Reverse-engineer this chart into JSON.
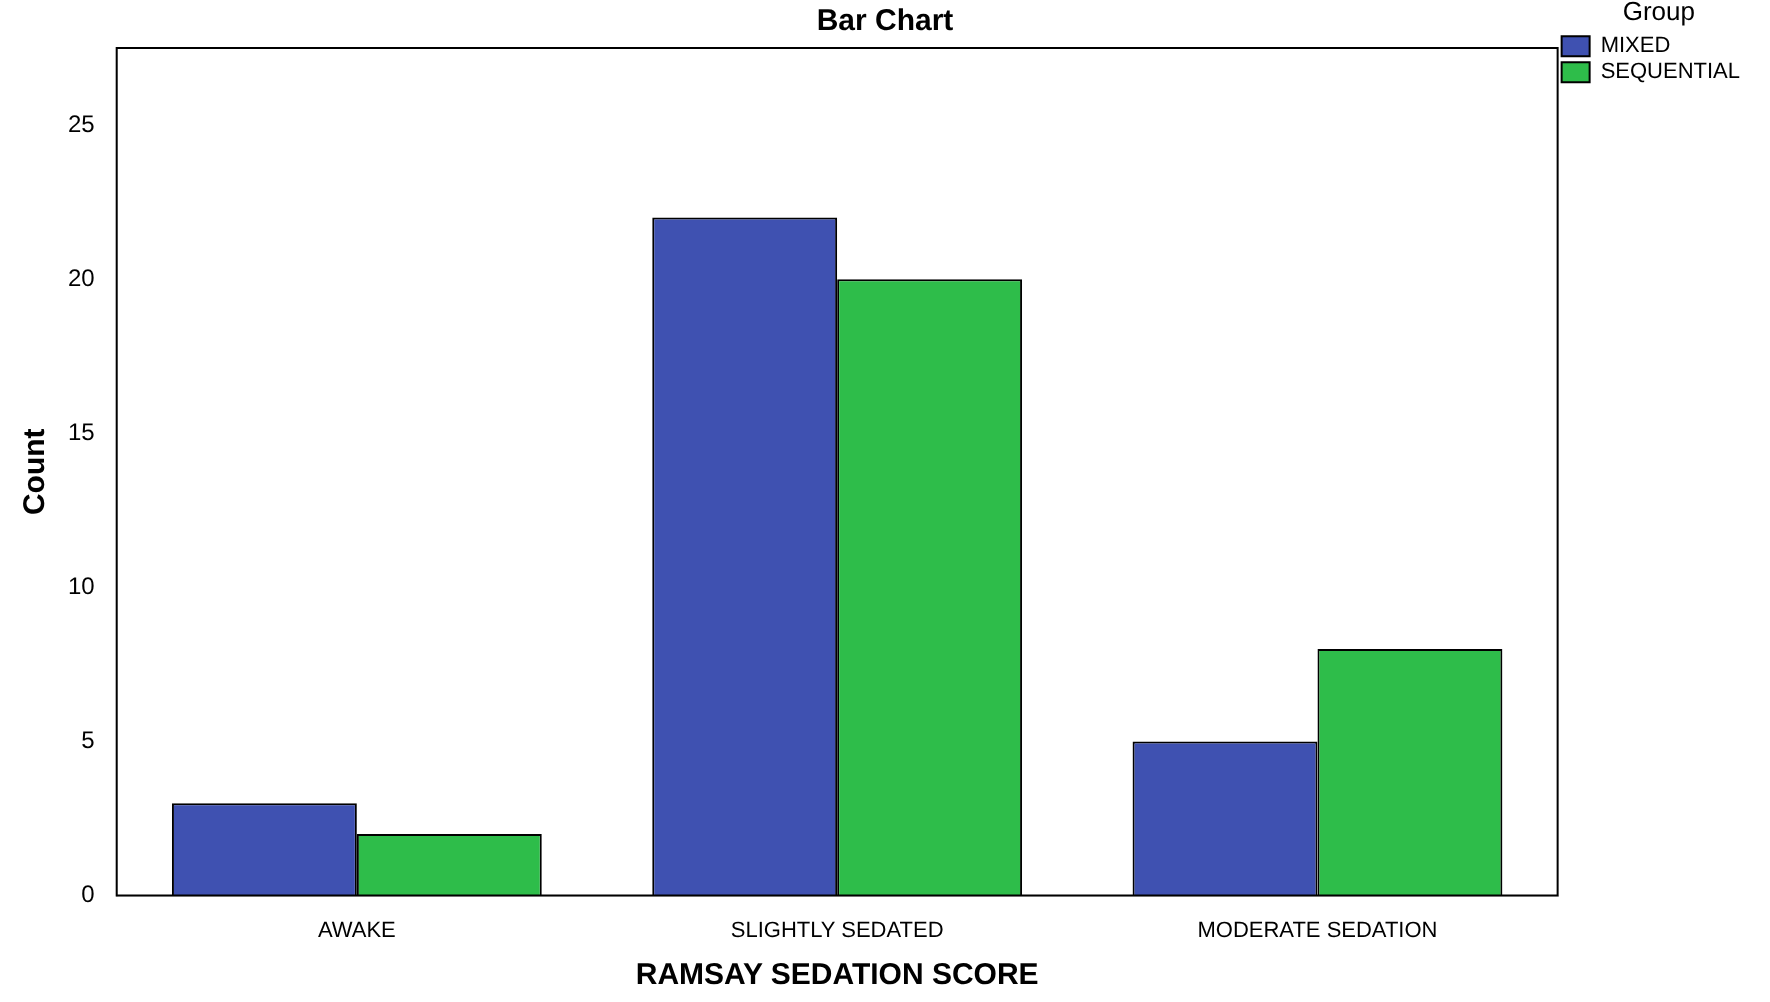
{
  "chart_data": {
    "type": "bar",
    "title": "Bar Chart",
    "xlabel": "RAMSAY SEDATION SCORE",
    "ylabel": "Count",
    "legend_title": "Group",
    "categories": [
      "AWAKE",
      "SLIGHTLY SEDATED",
      "MODERATE SEDATION"
    ],
    "series": [
      {
        "name": "MIXED",
        "color": "#3f51b1",
        "values": [
          3,
          22,
          5
        ]
      },
      {
        "name": "SEQUENTIAL",
        "color": "#2ebd4a",
        "values": [
          2,
          20,
          8
        ]
      }
    ],
    "ylim": [
      0,
      27.5
    ],
    "yticks": [
      0,
      5,
      10,
      15,
      20,
      25
    ],
    "grid": false,
    "legend": "top right"
  }
}
